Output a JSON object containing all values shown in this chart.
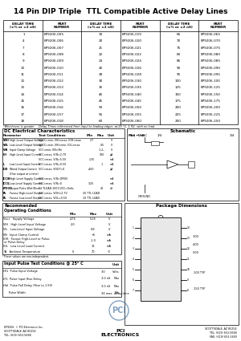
{
  "title": "14 Pin DIP Triple  TTL Compatible Active Delay Lines",
  "bg_color": "#ffffff",
  "table1_headers": [
    "DELAY TIME\n(±% or ±2 nS)",
    "PART\nNUMBER",
    "DELAY TIME\n(±% or ±2 nS)",
    "PART\nNUMBER",
    "DELAY TIME\n(±% or ±2 nS)",
    "PART\nNUMBER"
  ],
  "table1_rows": [
    [
      "1",
      "EP9206-005",
      "19",
      "EP9206-019",
      "65",
      "EP9206-065"
    ],
    [
      "4",
      "EP9206-006",
      "20",
      "EP9206-020",
      "70",
      "EP9206-070"
    ],
    [
      "7",
      "EP9206-007",
      "21",
      "EP9206-021",
      "75",
      "EP9206-075"
    ],
    [
      "8",
      "EP9206-008",
      "22",
      "EP9206-022",
      "80",
      "EP9206-080"
    ],
    [
      "9",
      "EP9206-009",
      "24",
      "EP9206-024",
      "85",
      "EP9206-085"
    ],
    [
      "10",
      "EP9206-010",
      "26",
      "EP9206-026",
      "90",
      "EP9206-090"
    ],
    [
      "11",
      "EP9206-011",
      "28",
      "EP9206-028",
      "95",
      "EP9206-095"
    ],
    [
      "12",
      "EP9206-012",
      "30",
      "EP9206-030",
      "100",
      "EP9206-100"
    ],
    [
      "13",
      "EP9206-013",
      "35",
      "EP9206-035",
      "125",
      "EP9206-125"
    ],
    [
      "14",
      "EP9206-014",
      "40",
      "EP9206-040",
      "150",
      "EP9206-150"
    ],
    [
      "15",
      "EP9206-015",
      "45",
      "EP9206-045",
      "175",
      "EP9206-175"
    ],
    [
      "16",
      "EP9206-016",
      "50",
      "EP9206-050",
      "200",
      "EP9206-200"
    ],
    [
      "17",
      "EP9206-017",
      "55",
      "EP9206-055",
      "225",
      "EP9206-225"
    ],
    [
      "18",
      "EP9206-018",
      "60",
      "EP9206-060",
      "250",
      "EP9206-250"
    ]
  ],
  "footnote1": "*Whichever is greater     Delay Times referenced from input to leading edges  at 25 °C, 1.5V,  with no load.",
  "dc_title": "DC Electrical Characteristics",
  "dc_params": [
    [
      "V₀H",
      "High-Level Output Voltage",
      "V₀CC= min, VIH = max, I₀H = max",
      "2.7",
      "",
      "V"
    ],
    [
      "V₀L",
      "Low-Level Output Voltage",
      "V₀CC= min, VᴵH= min, I₀L = max",
      "",
      "0.5",
      "V"
    ],
    [
      "VIN",
      "Input Clamp Voltage",
      "VCC = min, IIN = Pin",
      "",
      "-1.2ᵥ",
      "V"
    ],
    [
      "IIH",
      "High-Level Input Current",
      "VCC = max, VIN = 2.7V",
      "",
      "100",
      "μA"
    ],
    [
      "",
      "",
      "VCC = max, VIN = 5.5mA²",
      "1.35",
      "",
      "mA"
    ],
    [
      "IL",
      "Low Level Input Current",
      "VCC = max, VIN = 0.5V",
      "",
      "-1",
      "mA"
    ],
    [
      "I₀D",
      "Wired Output Current",
      "VCC = max, V₀UT = 0",
      "-400",
      "",
      "μA"
    ],
    [
      "",
      "(One output at a time)",
      "",
      "",
      "",
      ""
    ],
    [
      "I₀CCH",
      "High-Level Supply Current",
      "VCC = max, VIN = OPEN",
      "",
      "mA"
    ],
    [
      "I₀CCL",
      "Low-Level Supply Current",
      "VCC = max, VIN = 0",
      "3.25",
      "",
      "mA"
    ],
    [
      "tPD(S)",
      "Output Pulse-Wid.(Rise)",
      "14 TLOAD, 1000, VCC = Volts",
      "",
      "40",
      "nS"
    ],
    [
      "RL",
      "Fanout High-Level Output",
      "VCC = max, V₀H = 2.7V",
      "20 TTL LOAD",
      "",
      ""
    ],
    [
      "RL",
      "Fanout Low-Level Output",
      "VCC = max, V₀L = 0.5V",
      "10 TTL LOAD",
      "",
      ""
    ]
  ],
  "rec_rows": [
    [
      "Vᴀᴄᴄ",
      "Supply Voltage",
      "4.75",
      "5.25",
      "V"
    ],
    [
      "VIH",
      "High Level Input Voltage",
      "2.0",
      "",
      "V"
    ],
    [
      "VIL",
      "Low-Level Input Voltage",
      "",
      "0.8",
      "V"
    ],
    [
      "IIN",
      "Input Clamp Control",
      "",
      "+5",
      "mA"
    ],
    [
      "IOH",
      "Fanout High-Level or Pulse,\n or Pulse Delay",
      "",
      "-1.0",
      "mA"
    ],
    [
      "IOL",
      "Low Level Load Current",
      "",
      "16",
      "mA"
    ],
    [
      "TA",
      "Ambient Temperature",
      "0",
      "70",
      "°C"
    ]
  ],
  "pulse_rows": [
    [
      "tR1",
      "Pulse Input Voltage",
      "3.0",
      "Volts"
    ],
    [
      "tF1",
      "Pulse Input Rise Delay",
      "3.0 nS",
      "Max"
    ],
    [
      "tFal",
      "Pulse Fall Delay (Rise to 1.5V)",
      "3.0 nS",
      "Max"
    ],
    [
      "",
      "Pulse Width",
      "3X max. delay time",
      "Min"
    ]
  ],
  "pkg_title": "Package Dimensions",
  "bottom_note": "*These values are non-independent.",
  "bottom_left": "EP9206  © PCl Electronics Inc.\nSCOTTSDALE, AZ 85254\nTEL: (619) 653-5688",
  "bottom_center": "PCl\nELECTRONICS",
  "bottom_right": "SCOTTSDALE, AZ 85254\nTEL: (619) 653-5688\nFAX: (619) 653-5693"
}
